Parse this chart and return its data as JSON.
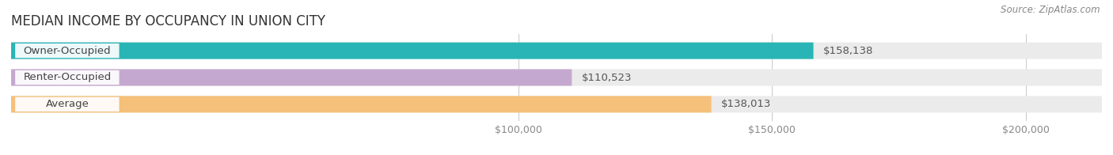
{
  "title": "MEDIAN INCOME BY OCCUPANCY IN UNION CITY",
  "source": "Source: ZipAtlas.com",
  "categories": [
    "Owner-Occupied",
    "Renter-Occupied",
    "Average"
  ],
  "values": [
    158138,
    110523,
    138013
  ],
  "labels": [
    "$158,138",
    "$110,523",
    "$138,013"
  ],
  "bar_colors": [
    "#29b5b5",
    "#c5a8d0",
    "#f5c07a"
  ],
  "background_color": "#ffffff",
  "bar_bg_color": "#ebebeb",
  "xlim_min": 0,
  "xlim_max": 215000,
  "xticks": [
    100000,
    150000,
    200000
  ],
  "xtick_labels": [
    "$100,000",
    "$150,000",
    "$200,000"
  ],
  "title_fontsize": 12,
  "label_fontsize": 9.5,
  "tick_fontsize": 9,
  "bar_height": 0.62,
  "bar_gap": 0.18
}
